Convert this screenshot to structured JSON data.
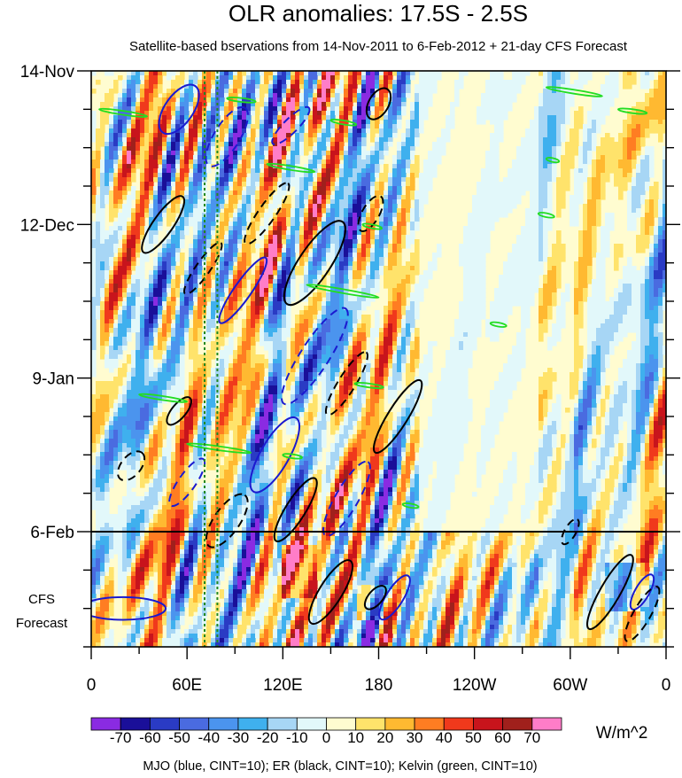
{
  "chart_data": {
    "type": "heatmap",
    "title": "OLR anomalies: 17.5S - 2.5S",
    "subtitle": "Satellite-based bservations from 14-Nov-2011 to 6-Feb-2012 + 21-day CFS Forecast",
    "xlabel": "",
    "ylabel": "",
    "x_ticks": [
      {
        "lon": 0,
        "label": "0"
      },
      {
        "lon": 60,
        "label": "60E"
      },
      {
        "lon": 120,
        "label": "120E"
      },
      {
        "lon": 180,
        "label": "180"
      },
      {
        "lon": 240,
        "label": "120W"
      },
      {
        "lon": 300,
        "label": "60W"
      },
      {
        "lon": 360,
        "label": "0"
      }
    ],
    "xlim": [
      0,
      360
    ],
    "y_ticks": [
      {
        "day": 0,
        "label": "14-Nov"
      },
      {
        "day": 28,
        "label": "12-Dec"
      },
      {
        "day": 56,
        "label": "9-Jan"
      },
      {
        "day": 84,
        "label": "6-Feb"
      }
    ],
    "ylim_days": [
      0,
      105
    ],
    "observation_end_day": 84,
    "forecast_label_lines": [
      "CFS",
      "Forecast"
    ],
    "colorbar": {
      "levels": [
        "-70",
        "-60",
        "-50",
        "-40",
        "-30",
        "-20",
        "-10",
        "0",
        "10",
        "20",
        "30",
        "40",
        "50",
        "60",
        "70"
      ],
      "colors": [
        "#8a2be2",
        "#1a0f99",
        "#2a3bc4",
        "#4a6be0",
        "#4b94ee",
        "#3fb0ee",
        "#a7d6f5",
        "#e2f8fa",
        "#fffcd0",
        "#ffe36b",
        "#ffb931",
        "#ff7d22",
        "#f0391c",
        "#c8141c",
        "#a0201c",
        "#ff7dc8"
      ],
      "units": "W/m^2"
    },
    "contours": {
      "mjo_color": "#1a1ad0",
      "er_color": "#000000",
      "kelvin_color": "#22dd22",
      "cint": 10
    },
    "reference_longitude_lines": [
      71,
      79
    ],
    "footer": "MJO (blue, CINT=10); ER (black, CINT=10); Kelvin (green, CINT=10)"
  }
}
